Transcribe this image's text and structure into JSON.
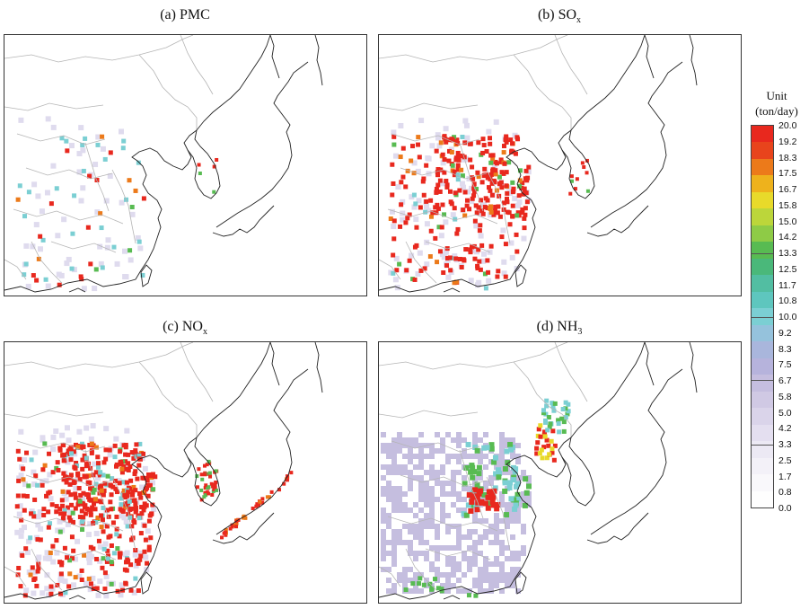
{
  "panels": [
    {
      "id": "a",
      "title_prefix": "(a) ",
      "title_main": "PMC",
      "title_sub": "",
      "pollutant": "PMC",
      "intensity": "low"
    },
    {
      "id": "b",
      "title_prefix": "(b) ",
      "title_main": "SO",
      "title_sub": "x",
      "pollutant": "SOx",
      "intensity": "high"
    },
    {
      "id": "c",
      "title_prefix": "(c) ",
      "title_main": "NO",
      "title_sub": "x",
      "pollutant": "NOx",
      "intensity": "very-high"
    },
    {
      "id": "d",
      "title_prefix": "(d) ",
      "title_main": "NH",
      "title_sub": "3",
      "pollutant": "NH3",
      "intensity": "moderate"
    }
  ],
  "legend": {
    "title_line1": "Unit",
    "title_line2": "(ton/day)",
    "ticks": [
      "20.0",
      "19.2",
      "18.3",
      "17.5",
      "16.7",
      "15.8",
      "15.0",
      "14.2",
      "13.3",
      "12.5",
      "11.7",
      "10.8",
      "10.0",
      "9.2",
      "8.3",
      "7.5",
      "6.7",
      "5.8",
      "5.0",
      "4.2",
      "3.3",
      "2.5",
      "1.7",
      "0.8",
      "0.0"
    ],
    "colors": [
      "#e8281e",
      "#e8441c",
      "#ec7a1a",
      "#eeb21c",
      "#e8da2a",
      "#bcd63a",
      "#8ecb46",
      "#58bb52",
      "#4ab87a",
      "#52bea2",
      "#5ec6be",
      "#7bcfd3",
      "#95c2dc",
      "#a9b6dc",
      "#b6b3dc",
      "#c5bedf",
      "#d0c9e4",
      "#dad4ea",
      "#e4dff0",
      "#ece9f4",
      "#f3f1f8",
      "#f9f8fb",
      "#fefefe"
    ]
  },
  "palette": {
    "red": "#e8281e",
    "orange": "#ec7a1a",
    "yellow": "#e8da2a",
    "green": "#58bb52",
    "cyan": "#7bcfd3",
    "lavender": "#c5bedf",
    "land_line": "#222222",
    "border_line": "#b5b5b5"
  }
}
